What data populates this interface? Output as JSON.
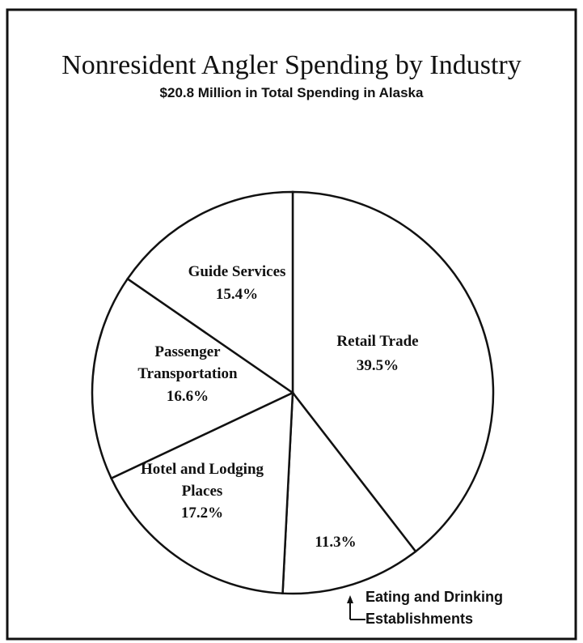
{
  "chart_data": {
    "type": "pie",
    "title": "Nonresident Angler Spending by Industry",
    "subtitle": "$20.8 Million in Total Spending in Alaska",
    "categories": [
      "Retail Trade",
      "Eating and Drinking Establishments",
      "Hotel and Lodging Places",
      "Passenger Transportation",
      "Guide Services"
    ],
    "values": [
      39.5,
      11.3,
      17.2,
      16.6,
      15.4
    ],
    "value_labels": [
      "39.5%",
      "11.3%",
      "17.2%",
      "16.6%",
      "15.4%"
    ],
    "color": "#ffffff"
  }
}
